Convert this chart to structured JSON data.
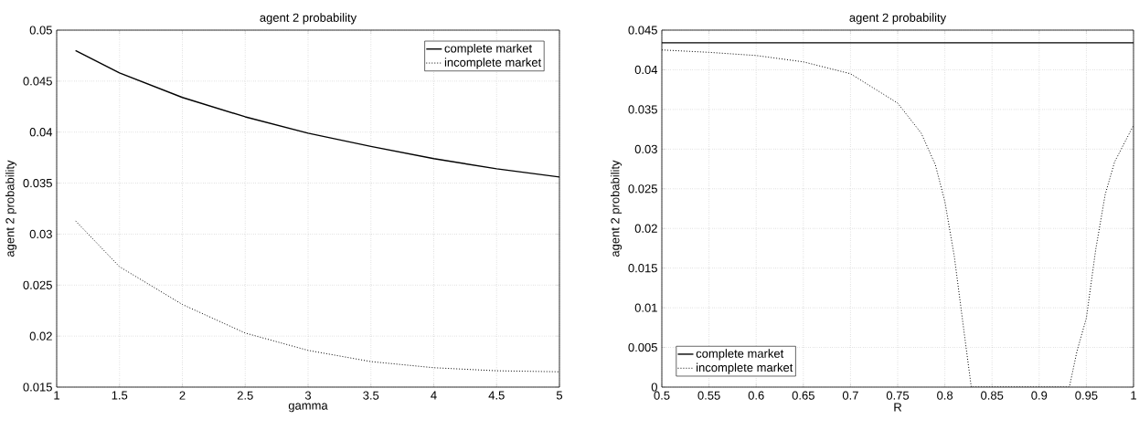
{
  "chart_data": [
    {
      "type": "line",
      "title": "agent 2 probability",
      "xlabel": "gamma",
      "ylabel": "agent 2 probability",
      "xlim": [
        1,
        5
      ],
      "ylim": [
        0.015,
        0.05
      ],
      "xticks": [
        1,
        1.5,
        2,
        2.5,
        3,
        3.5,
        4,
        4.5,
        5
      ],
      "yticks": [
        0.015,
        0.02,
        0.025,
        0.03,
        0.035,
        0.04,
        0.045,
        0.05
      ],
      "grid": true,
      "legend": "top right",
      "series": [
        {
          "name": "complete market",
          "color": "#000000",
          "line_style": "solid",
          "x": [
            1.15,
            1.5,
            2,
            2.5,
            3,
            3.5,
            4,
            4.5,
            5
          ],
          "values": [
            0.048,
            0.0458,
            0.0434,
            0.0415,
            0.0399,
            0.0386,
            0.0374,
            0.0364,
            0.0356
          ]
        },
        {
          "name": "incomplete market",
          "color": "#000000",
          "line_style": "dotted",
          "x": [
            1.15,
            1.5,
            2,
            2.5,
            3,
            3.5,
            4,
            4.5,
            5
          ],
          "values": [
            0.0313,
            0.0268,
            0.0231,
            0.0203,
            0.0186,
            0.0175,
            0.0169,
            0.0166,
            0.0165
          ]
        }
      ]
    },
    {
      "type": "line",
      "title": "agent 2 probability",
      "xlabel": "R",
      "ylabel": "agent 2 probability",
      "xlim": [
        0.5,
        1
      ],
      "ylim": [
        0,
        0.045
      ],
      "xticks": [
        0.5,
        0.55,
        0.6,
        0.65,
        0.7,
        0.75,
        0.8,
        0.85,
        0.9,
        0.95,
        1
      ],
      "yticks": [
        0,
        0.005,
        0.01,
        0.015,
        0.02,
        0.025,
        0.03,
        0.035,
        0.04,
        0.045
      ],
      "grid": true,
      "legend": "bottom left",
      "series": [
        {
          "name": "complete market",
          "color": "#000000",
          "line_style": "solid",
          "x": [
            0.5,
            1
          ],
          "values": [
            0.0434,
            0.0434
          ]
        },
        {
          "name": "incomplete market",
          "color": "#000000",
          "line_style": "dotted",
          "x": [
            0.5,
            0.55,
            0.6,
            0.65,
            0.7,
            0.75,
            0.775,
            0.79,
            0.8,
            0.81,
            0.82,
            0.828,
            0.85,
            0.9,
            0.932,
            0.94,
            0.95,
            0.96,
            0.97,
            0.98,
            1
          ],
          "values": [
            0.0425,
            0.0422,
            0.0418,
            0.041,
            0.0395,
            0.0358,
            0.032,
            0.028,
            0.0234,
            0.0165,
            0.0073,
            0,
            0,
            0,
            0,
            0.0045,
            0.0087,
            0.0174,
            0.0243,
            0.0284,
            0.033
          ]
        }
      ]
    }
  ]
}
